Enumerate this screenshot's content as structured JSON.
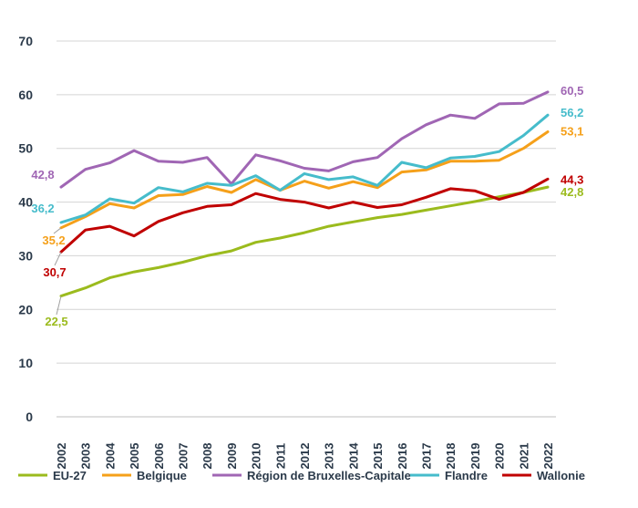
{
  "chart_data": {
    "type": "line",
    "title": "",
    "xlabel": "",
    "ylabel": "",
    "ylim": [
      0,
      70
    ],
    "yticks": [
      0,
      10,
      20,
      30,
      40,
      50,
      60,
      70
    ],
    "grid": "horizontal",
    "legend_position": "bottom",
    "x": [
      "2002",
      "2003",
      "2004",
      "2005",
      "2006",
      "2007",
      "2008",
      "2009",
      "2010",
      "2011",
      "2012",
      "2013",
      "2014",
      "2015",
      "2016",
      "2017",
      "2018",
      "2019",
      "2020",
      "2021",
      "2022"
    ],
    "series": [
      {
        "name": "EU-27",
        "color": "#9bbb1d",
        "values": [
          22.5,
          24.0,
          25.9,
          27.0,
          27.8,
          28.8,
          30.0,
          30.9,
          32.5,
          33.3,
          34.3,
          35.5,
          36.3,
          37.1,
          37.7,
          38.5,
          39.3,
          40.1,
          41.0,
          41.8,
          42.8
        ],
        "start_label": "22,5",
        "end_label": "42,8"
      },
      {
        "name": "Belgique",
        "color": "#f5a01a",
        "values": [
          35.2,
          37.3,
          39.7,
          38.9,
          41.2,
          41.4,
          42.9,
          41.8,
          44.2,
          42.2,
          43.9,
          42.6,
          43.8,
          42.7,
          45.6,
          46.0,
          47.6,
          47.6,
          47.8,
          50.0,
          53.1
        ],
        "start_label": "35,2",
        "end_label": "53,1"
      },
      {
        "name": "Région de Bruxelles-Capitale",
        "color": "#a066b4",
        "values": [
          42.8,
          46.1,
          47.3,
          49.6,
          47.6,
          47.4,
          48.3,
          43.4,
          48.8,
          47.7,
          46.3,
          45.8,
          47.5,
          48.3,
          51.8,
          54.4,
          56.2,
          55.6,
          58.3,
          58.4,
          60.5
        ],
        "start_label": "42,8",
        "end_label": "60,5"
      },
      {
        "name": "Flandre",
        "color": "#46bccb",
        "values": [
          36.2,
          37.6,
          40.6,
          39.8,
          42.7,
          41.9,
          43.5,
          43.1,
          44.9,
          42.2,
          45.3,
          44.2,
          44.7,
          43.1,
          47.4,
          46.4,
          48.2,
          48.5,
          49.4,
          52.4,
          56.2
        ],
        "start_label": "36,2",
        "end_label": "56,2"
      },
      {
        "name": "Wallonie",
        "color": "#c00000",
        "values": [
          30.7,
          34.8,
          35.5,
          33.7,
          36.4,
          38.0,
          39.2,
          39.5,
          41.6,
          40.5,
          40.0,
          38.9,
          40.0,
          39.0,
          39.5,
          40.9,
          42.5,
          42.1,
          40.5,
          41.8,
          44.3
        ],
        "start_label": "30,7",
        "end_label": "44,3"
      }
    ]
  }
}
